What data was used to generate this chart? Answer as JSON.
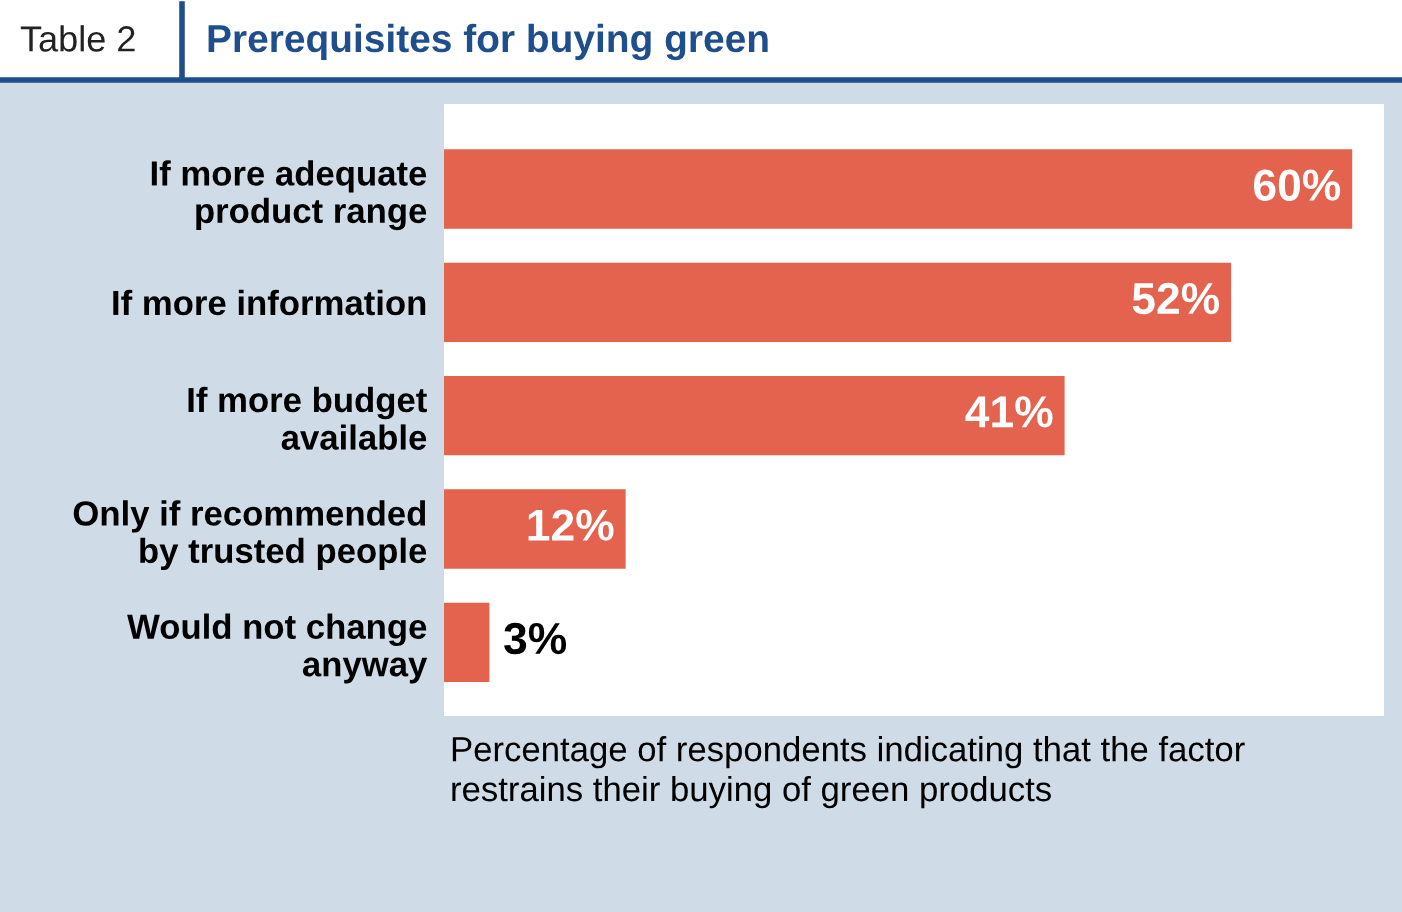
{
  "chart_data": {
    "type": "bar",
    "orientation": "horizontal",
    "title": "Prerequisites for buying green",
    "annotations": [
      "Table 2"
    ],
    "xlabel": "Percentage of respondents indicating that the factor\nrestrains their buying of green products",
    "categories": [
      "If more adequate\nproduct range",
      "If more information",
      "If more budget\navailable",
      "Only if recommended\nby trusted people",
      "Would not change\nanyway"
    ],
    "values": [
      60,
      52,
      41,
      12,
      3
    ],
    "value_labels": [
      "60%",
      "52%",
      "41%",
      "12%",
      "3%"
    ],
    "color": "#e3634f",
    "grid": false,
    "legend": false
  }
}
